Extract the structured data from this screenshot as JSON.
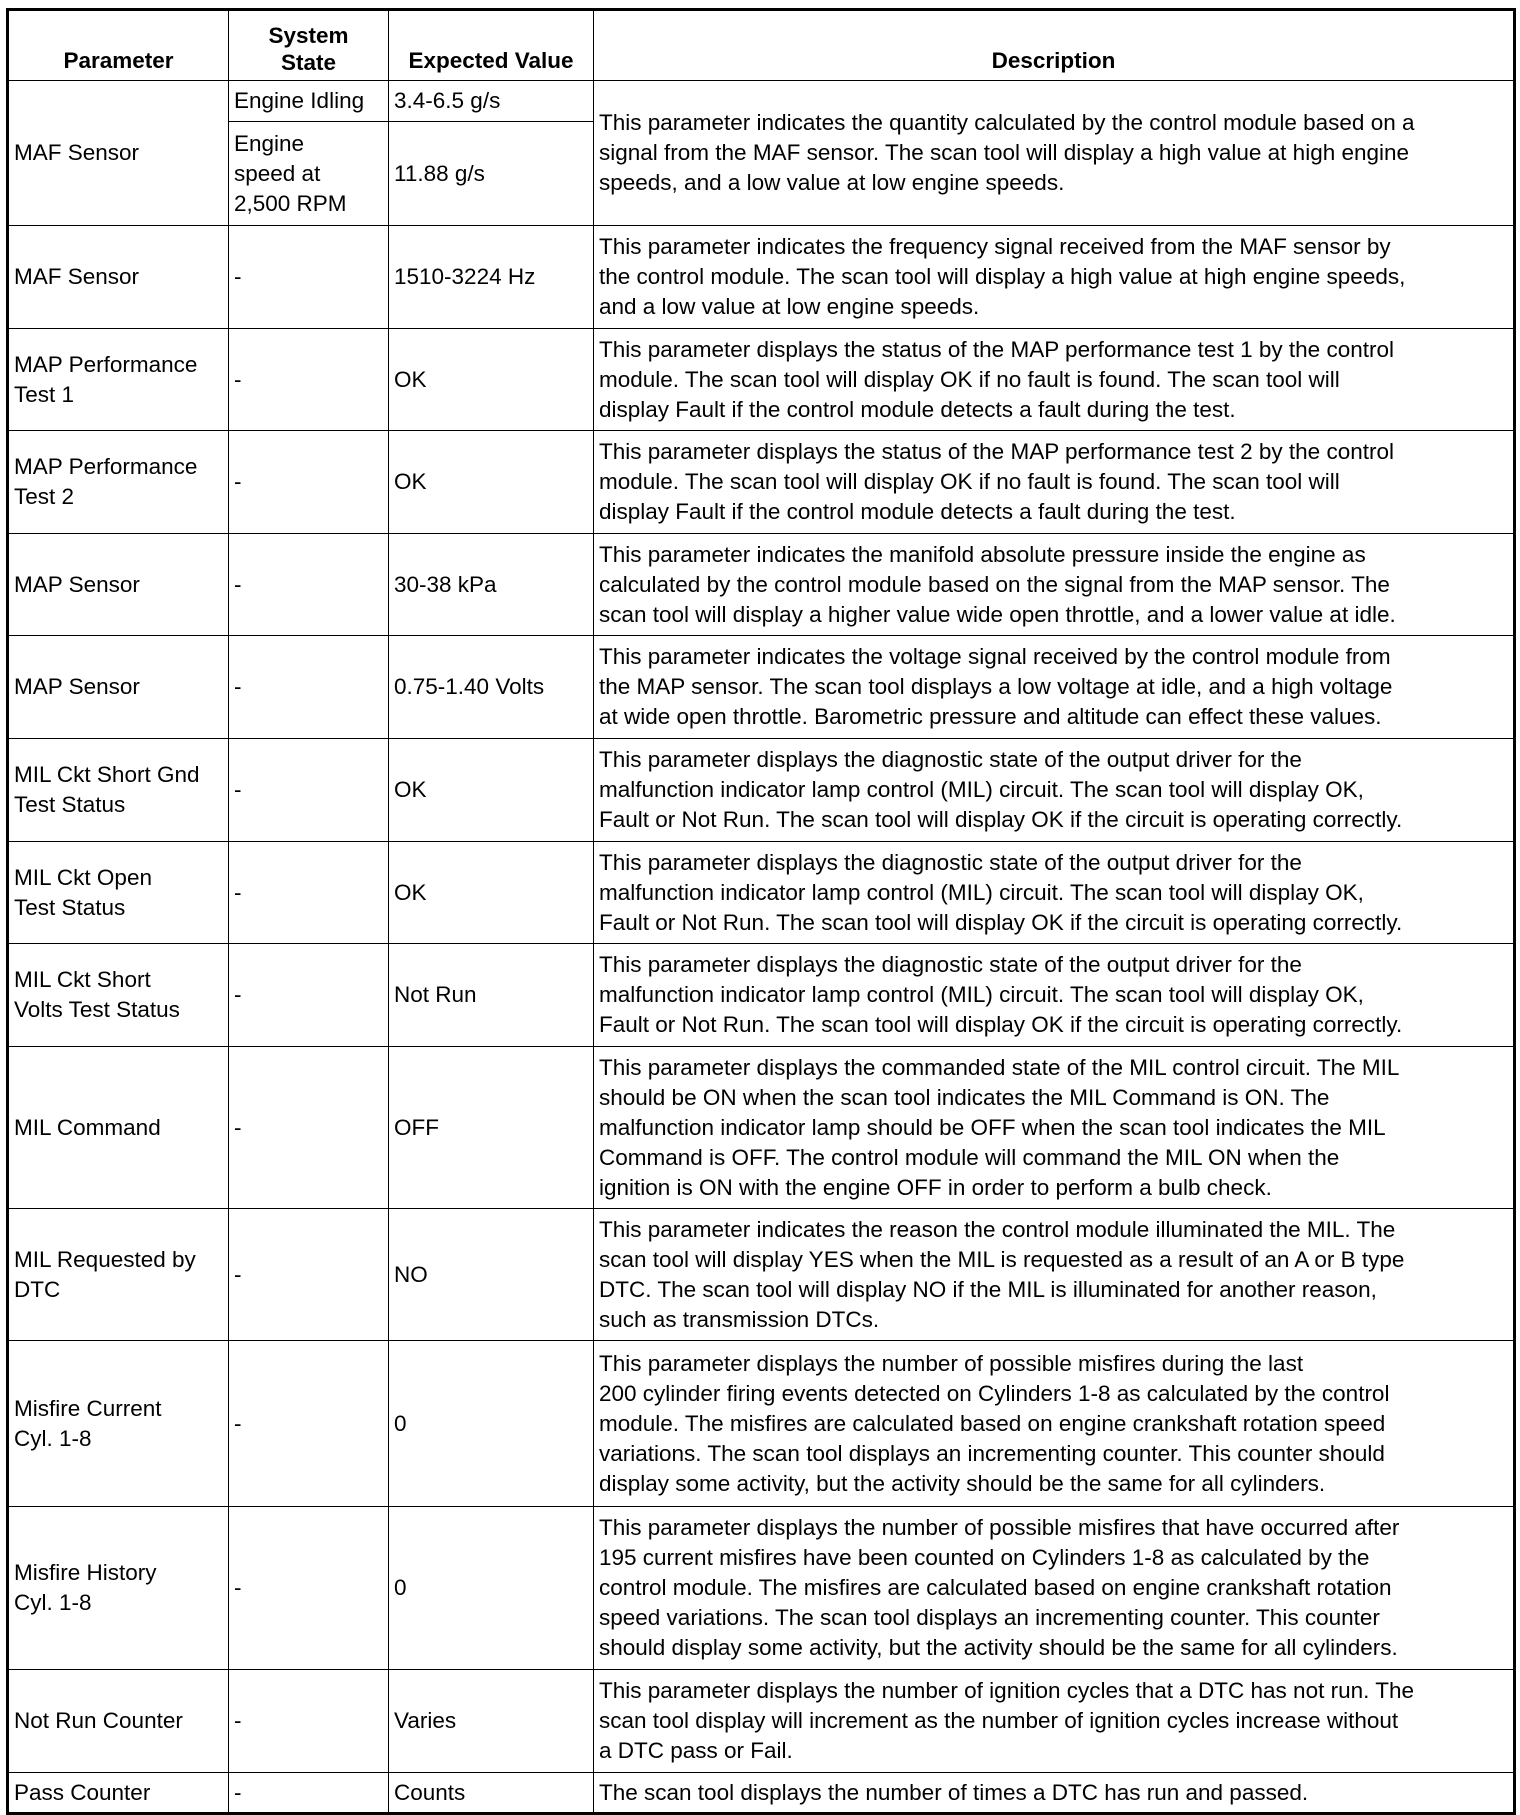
{
  "headers": [
    "Parameter",
    "System State",
    "Expected Value",
    "Description"
  ],
  "maf_first": {
    "parameter": [
      "MAF Sensor"
    ],
    "states": [
      {
        "state": [
          "Engine Idling"
        ],
        "value": "3.4-6.5 g/s"
      },
      {
        "state": [
          "Engine",
          "speed at",
          "2,500 RPM"
        ],
        "value": "11.88 g/s"
      }
    ],
    "description": [
      "This parameter indicates the quantity calculated by the control module based on a",
      "signal from the MAF sensor. The scan tool will display a high value at high engine",
      "speeds, and a low value at low engine speeds."
    ]
  },
  "rows": [
    {
      "parameter": [
        "MAF Sensor"
      ],
      "state": "-",
      "value": "1510-3224 Hz",
      "description": [
        "This parameter indicates the frequency signal received from the MAF sensor by",
        "the control module. The scan tool will display a high value at high engine speeds,",
        "and a low value at low engine speeds."
      ]
    },
    {
      "parameter": [
        "MAP Performance",
        "Test 1"
      ],
      "state": "-",
      "value": "OK",
      "description": [
        "This parameter displays the status of the MAP performance test 1 by the control",
        "module. The scan tool will display OK if no fault is found. The scan tool will",
        "display Fault if the control module detects a fault during the test."
      ]
    },
    {
      "parameter": [
        "MAP Performance",
        "Test 2"
      ],
      "state": "-",
      "value": "OK",
      "description": [
        "This parameter displays the status of the MAP performance test 2 by the control",
        "module. The scan tool will display OK if no fault is found. The scan tool will",
        "display Fault if the control module detects a fault during the test."
      ]
    },
    {
      "parameter": [
        "MAP Sensor"
      ],
      "state": "-",
      "value": "30-38 kPa",
      "description": [
        "This parameter indicates the manifold absolute pressure inside the engine as",
        "calculated by the control module based on the signal from the MAP sensor. The",
        "scan tool will display a higher value wide open throttle, and a lower value at idle."
      ]
    },
    {
      "parameter": [
        "MAP Sensor"
      ],
      "state": "-",
      "value": "0.75-1.40 Volts",
      "description": [
        "This parameter indicates the voltage signal received by the control module from",
        "the MAP sensor. The scan tool displays a low voltage at idle, and a high voltage",
        "at wide open throttle. Barometric pressure and altitude can effect these values."
      ]
    },
    {
      "parameter": [
        "MIL Ckt Short Gnd",
        "Test Status"
      ],
      "state": "-",
      "value": "OK",
      "description": [
        "This parameter displays the diagnostic state of the output driver for the",
        "malfunction indicator lamp control (MIL) circuit. The scan tool will display OK,",
        "Fault or Not Run. The scan tool will display OK if the circuit is operating correctly."
      ]
    },
    {
      "parameter": [
        "MIL Ckt Open",
        "Test Status"
      ],
      "state": "-",
      "value": "OK",
      "description": [
        "This parameter displays the diagnostic state of the output driver for the",
        "malfunction indicator lamp control (MIL) circuit. The scan tool will display OK,",
        "Fault or Not Run. The scan tool will display OK if the circuit is operating correctly."
      ]
    },
    {
      "parameter": [
        "MIL Ckt Short",
        "Volts Test Status"
      ],
      "state": "-",
      "value": "Not Run",
      "description": [
        "This parameter displays the diagnostic state of the output driver for the",
        "malfunction indicator lamp control (MIL) circuit. The scan tool will display OK,",
        "Fault or Not Run. The scan tool will display OK if the circuit is operating correctly."
      ]
    },
    {
      "parameter": [
        "MIL Command"
      ],
      "state": "-",
      "value": "OFF",
      "description": [
        "This parameter displays the commanded state of the MIL control circuit. The MIL",
        "should be ON when the scan tool indicates the MIL Command is ON. The",
        "malfunction indicator lamp should be OFF when the scan tool indicates the MIL",
        "Command is OFF. The control module will command the MIL ON when the",
        "ignition is ON with the engine OFF in order to perform a bulb check."
      ]
    },
    {
      "parameter": [
        "MIL Requested by",
        "DTC"
      ],
      "state": "-",
      "value": "NO",
      "description": [
        "This parameter indicates the reason the control module illuminated the MIL. The",
        "scan tool will display YES when the MIL is requested as a result of an A or B type",
        "DTC. The scan tool will display NO if the MIL is illuminated for another reason,",
        "such as transmission DTCs."
      ]
    },
    {
      "parameter": [
        "Misfire Current",
        "Cyl. 1-8"
      ],
      "state": "-",
      "value": "0",
      "description": [
        "This parameter displays the number of possible misfires during the last",
        "200 cylinder firing events detected on Cylinders 1-8 as calculated by the control",
        "module. The misfires are calculated based on engine crankshaft rotation speed",
        "variations. The scan tool displays an incrementing counter. This counter should",
        "display some activity, but the activity should be the same for all cylinders."
      ]
    },
    {
      "parameter": [
        "Misfire History",
        "Cyl. 1-8"
      ],
      "state": "-",
      "value": "0",
      "description": [
        "This parameter displays the number of possible misfires that have occurred after",
        "195 current misfires have been counted on Cylinders 1-8 as calculated by the",
        "control module. The misfires are calculated based on engine crankshaft rotation",
        "speed variations. The scan tool displays an incrementing counter. This counter",
        "should display some activity, but the activity should be the same for all cylinders."
      ]
    },
    {
      "parameter": [
        "Not Run Counter"
      ],
      "state": "-",
      "value": "Varies",
      "description": [
        "This parameter displays the number of ignition cycles that a DTC has not run. The",
        "scan tool display will increment as the number of ignition cycles increase without",
        "a DTC pass or Fail."
      ]
    },
    {
      "parameter": [
        "Pass Counter"
      ],
      "state": "-",
      "value": "Counts",
      "description": [
        "The scan tool displays the number of times a DTC has run and passed."
      ]
    }
  ]
}
